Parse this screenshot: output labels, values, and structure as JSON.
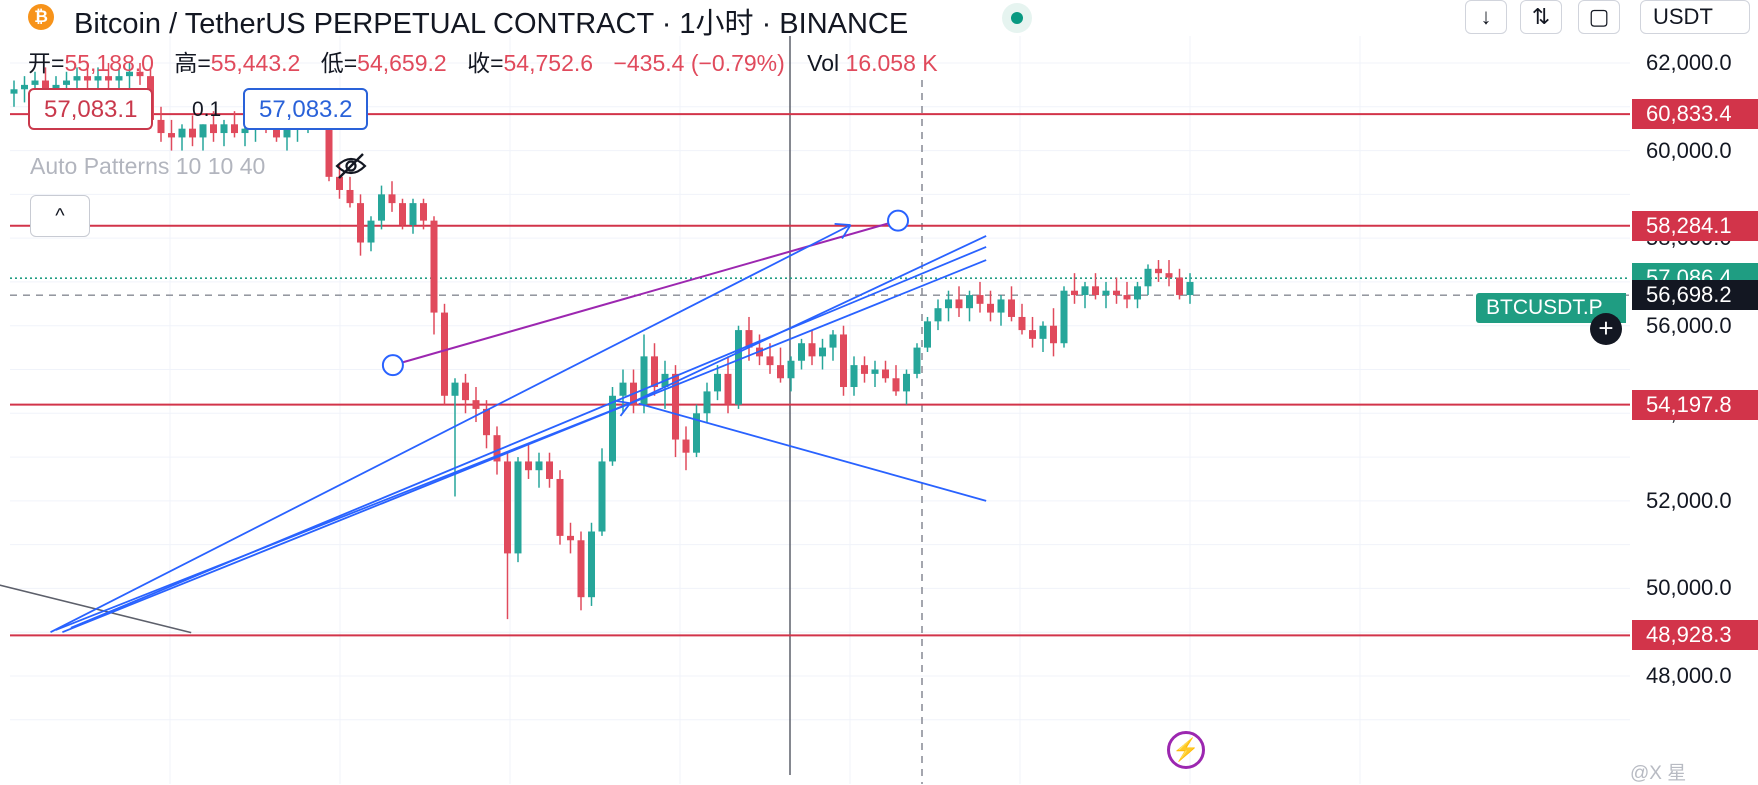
{
  "header": {
    "symbol_title": "Bitcoin / TetherUS PERPETUAL CONTRACT · 1小时 · BINANCE",
    "logo_letter": "₿",
    "unit_selector": "USDT",
    "toolbar_icons": [
      "arrow-down-icon",
      "collapse-vertical-icon",
      "fullscreen-icon"
    ]
  },
  "ohlc": {
    "open_label": "开=",
    "open_value": "55,188.0",
    "high_label": "高=",
    "high_value": "55,443.2",
    "low_label": "低=",
    "low_value": "54,659.2",
    "close_label": "收=",
    "close_value": "54,752.6",
    "change": "−435.4 (−0.79%)",
    "vol_label": "Vol",
    "vol_value": "16.058 K"
  },
  "quote": {
    "sell": "57,083.1",
    "spread": "0.1",
    "buy": "57,083.2"
  },
  "indicator": {
    "label": "Auto Patterns 10 10 40"
  },
  "collapse_glyph": "^",
  "symbol_tag": "BTCUSDT.P",
  "plus_glyph": "+",
  "bolt_glyph": "⚡",
  "watermark": "@X 星",
  "colors": {
    "up": "#26a69a",
    "down": "#e04a5c",
    "hline": "#d2344a",
    "channel": "#9c27b0",
    "trend": "#2962ff"
  },
  "chart_data": {
    "type": "candlestick",
    "timeframe": "1小时",
    "ylim": [
      47800,
      63200
    ],
    "y_ticks": [
      "62,000.0",
      "60,000.0",
      "58,000.0",
      "56,000.0",
      "54,000.0",
      "52,000.0",
      "50,000.0",
      "48,000.0"
    ],
    "y_tick_values": [
      62000,
      60000,
      58000,
      56000,
      54000,
      52000,
      50000,
      48000
    ],
    "horizontal_levels": [
      {
        "value": 60833.4,
        "label": "60,833.4"
      },
      {
        "value": 58284.1,
        "label": "58,284.1"
      },
      {
        "value": 54197.8,
        "label": "54,197.8"
      },
      {
        "value": 48928.3,
        "label": "48,928.3"
      }
    ],
    "last_price": {
      "value": 57086.4,
      "label": "57,086.4"
    },
    "crosshair_price": {
      "value": 56698.2,
      "label": "56,698.2"
    },
    "candles": [
      [
        61300,
        61600,
        61000,
        61400
      ],
      [
        61400,
        61700,
        61100,
        61500
      ],
      [
        61500,
        61800,
        61200,
        61600
      ],
      [
        61600,
        61900,
        61300,
        61400
      ],
      [
        61400,
        61700,
        61100,
        61500
      ],
      [
        61500,
        61800,
        61200,
        61600
      ],
      [
        61600,
        61900,
        61300,
        61700
      ],
      [
        61700,
        62000,
        61400,
        61600
      ],
      [
        61600,
        61900,
        61300,
        61700
      ],
      [
        61700,
        62000,
        61400,
        61600
      ],
      [
        61600,
        61900,
        61300,
        61700
      ],
      [
        61700,
        62000,
        61400,
        61800
      ],
      [
        61800,
        62000,
        61500,
        61700
      ],
      [
        61700,
        61900,
        60500,
        60700
      ],
      [
        60700,
        61000,
        60200,
        60400
      ],
      [
        60400,
        60700,
        60000,
        60300
      ],
      [
        60300,
        60600,
        60000,
        60500
      ],
      [
        60500,
        60800,
        60100,
        60300
      ],
      [
        60300,
        60600,
        60000,
        60600
      ],
      [
        60600,
        60900,
        60200,
        60400
      ],
      [
        60400,
        60700,
        60100,
        60600
      ],
      [
        60600,
        60900,
        60300,
        60400
      ],
      [
        60400,
        60700,
        60100,
        60500
      ],
      [
        60500,
        60800,
        60200,
        60700
      ],
      [
        60700,
        61000,
        60400,
        60500
      ],
      [
        60500,
        60800,
        60200,
        60300
      ],
      [
        60300,
        60600,
        60000,
        60500
      ],
      [
        60500,
        60800,
        60200,
        60700
      ],
      [
        60700,
        60900,
        60400,
        60800
      ],
      [
        60800,
        60900,
        60500,
        60600
      ],
      [
        60600,
        60900,
        59300,
        59400
      ],
      [
        59400,
        59700,
        58900,
        59100
      ],
      [
        59100,
        59400,
        58700,
        58800
      ],
      [
        58800,
        59000,
        57600,
        57900
      ],
      [
        57900,
        58500,
        57700,
        58400
      ],
      [
        58400,
        59200,
        58200,
        59000
      ],
      [
        59000,
        59300,
        58600,
        58800
      ],
      [
        58800,
        58900,
        58200,
        58300
      ],
      [
        58300,
        58900,
        58100,
        58800
      ],
      [
        58800,
        58900,
        58200,
        58400
      ],
      [
        58400,
        58500,
        55800,
        56300
      ],
      [
        56300,
        56500,
        54200,
        54400
      ],
      [
        54400,
        54800,
        52100,
        54700
      ],
      [
        54700,
        54900,
        54000,
        54300
      ],
      [
        54300,
        54600,
        53800,
        54100
      ],
      [
        54100,
        54300,
        53200,
        53500
      ],
      [
        53500,
        53700,
        52600,
        52900
      ],
      [
        52900,
        53100,
        49300,
        50800
      ],
      [
        50800,
        53000,
        50600,
        52900
      ],
      [
        52900,
        53300,
        52500,
        52700
      ],
      [
        52700,
        53100,
        52300,
        52900
      ],
      [
        52900,
        53100,
        52300,
        52500
      ],
      [
        52500,
        52700,
        51000,
        51200
      ],
      [
        51200,
        51500,
        50800,
        51100
      ],
      [
        51100,
        51300,
        49500,
        49800
      ],
      [
        49800,
        51500,
        49600,
        51300
      ],
      [
        51300,
        53200,
        51200,
        52900
      ],
      [
        52900,
        54600,
        52800,
        54400
      ],
      [
        54400,
        55000,
        54000,
        54700
      ],
      [
        54700,
        55000,
        54000,
        54200
      ],
      [
        54200,
        55800,
        54000,
        55300
      ],
      [
        55300,
        55600,
        54400,
        54600
      ],
      [
        54600,
        55200,
        54100,
        54900
      ],
      [
        54900,
        55100,
        53000,
        53400
      ],
      [
        53400,
        53700,
        52700,
        53100
      ],
      [
        53100,
        54200,
        53000,
        54000
      ],
      [
        54000,
        54700,
        53800,
        54500
      ],
      [
        54500,
        55100,
        54300,
        54900
      ],
      [
        54900,
        55300,
        54000,
        54200
      ],
      [
        54200,
        56000,
        54100,
        55900
      ],
      [
        55900,
        56200,
        55200,
        55500
      ],
      [
        55500,
        55800,
        55100,
        55300
      ],
      [
        55300,
        55600,
        54900,
        55100
      ],
      [
        55100,
        55500,
        54700,
        54800
      ],
      [
        54800,
        55300,
        54500,
        55200
      ],
      [
        55200,
        55700,
        55000,
        55600
      ],
      [
        55600,
        55900,
        55100,
        55300
      ],
      [
        55300,
        55700,
        55000,
        55500
      ],
      [
        55500,
        55900,
        55200,
        55800
      ],
      [
        55800,
        56000,
        54400,
        54600
      ],
      [
        54600,
        55300,
        54400,
        55100
      ],
      [
        55100,
        55300,
        54700,
        54900
      ],
      [
        54900,
        55200,
        54600,
        55000
      ],
      [
        55000,
        55200,
        54700,
        54800
      ],
      [
        54800,
        55100,
        54400,
        54500
      ],
      [
        54500,
        55000,
        54200,
        54900
      ],
      [
        54900,
        55600,
        54800,
        55500
      ],
      [
        55500,
        56200,
        55400,
        56100
      ],
      [
        56100,
        56600,
        55900,
        56400
      ],
      [
        56400,
        56800,
        56100,
        56600
      ],
      [
        56600,
        56900,
        56200,
        56400
      ],
      [
        56400,
        56800,
        56100,
        56700
      ],
      [
        56700,
        57000,
        56300,
        56500
      ],
      [
        56500,
        56800,
        56100,
        56300
      ],
      [
        56300,
        56700,
        56000,
        56600
      ],
      [
        56600,
        56900,
        56100,
        56200
      ],
      [
        56200,
        56500,
        55800,
        55900
      ],
      [
        55900,
        56200,
        55500,
        55700
      ],
      [
        55700,
        56100,
        55400,
        56000
      ],
      [
        56000,
        56400,
        55300,
        55600
      ],
      [
        55600,
        56900,
        55500,
        56800
      ],
      [
        56800,
        57200,
        56500,
        56700
      ],
      [
        56700,
        57000,
        56400,
        56900
      ],
      [
        56900,
        57200,
        56600,
        56700
      ],
      [
        56700,
        57000,
        56400,
        56800
      ],
      [
        56800,
        57100,
        56500,
        56700
      ],
      [
        56700,
        57000,
        56400,
        56600
      ],
      [
        56600,
        57000,
        56400,
        56900
      ],
      [
        56900,
        57400,
        56700,
        57300
      ],
      [
        57300,
        57500,
        57000,
        57200
      ],
      [
        57200,
        57500,
        56900,
        57100
      ],
      [
        57100,
        57300,
        56600,
        56700
      ],
      [
        56700,
        57200,
        56500,
        57000
      ]
    ],
    "x_range": [
      0,
      1000
    ],
    "pattern_wedge": {
      "p1": [
        220,
        55100
      ],
      "p2": [
        518,
        58400
      ]
    },
    "trend_lines": [
      [
        [
          18,
          49000
        ],
        [
          490,
          58300
        ]
      ],
      [
        [
          21,
          49050
        ],
        [
          360,
          54230
        ]
      ],
      [
        [
          30,
          49100
        ],
        [
          570,
          57800
        ]
      ],
      [
        [
          25,
          49000
        ],
        [
          570,
          57500
        ]
      ],
      [
        [
          360,
          54230
        ],
        [
          570,
          58050
        ]
      ],
      [
        [
          365,
          54220
        ],
        [
          570,
          52000
        ]
      ]
    ],
    "gray_line": [
      [
        -160,
        51500
      ],
      [
        101,
        48990
      ]
    ]
  }
}
